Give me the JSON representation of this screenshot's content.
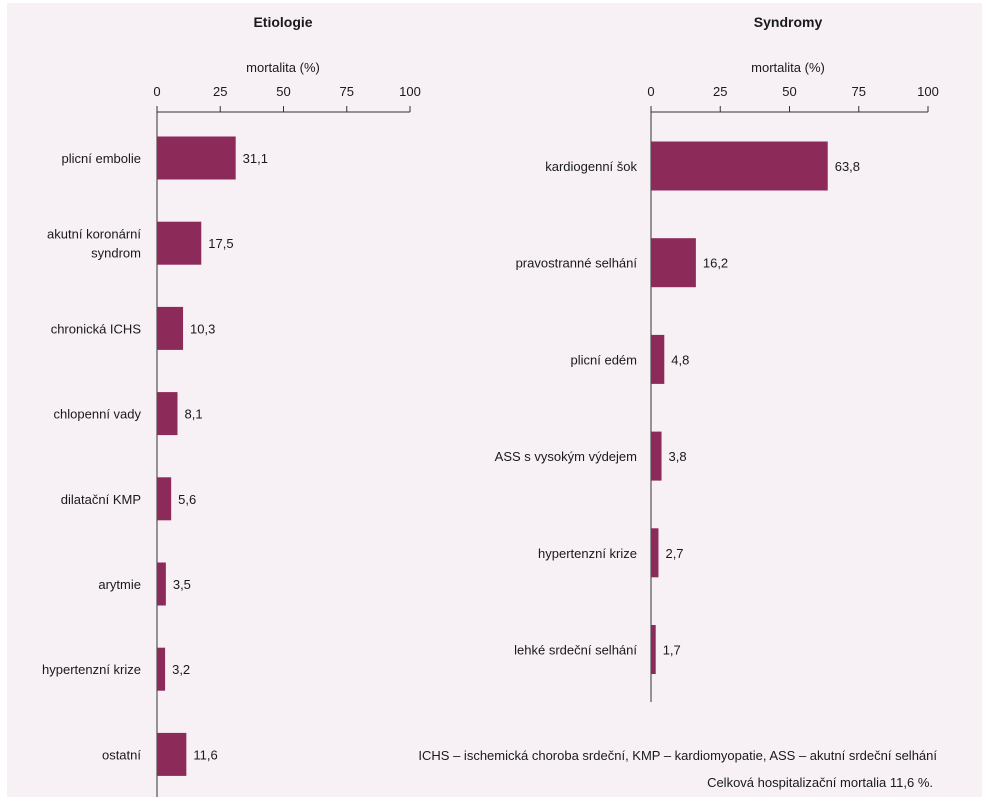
{
  "colors": {
    "bar": "#8c2a5a",
    "background": "#f7f0f5"
  },
  "chart_data": [
    {
      "type": "bar",
      "orientation": "horizontal",
      "title": "Etiologie",
      "xlabel": "mortalita (%)",
      "xlim": [
        0,
        100
      ],
      "xticks": [
        "0",
        "25",
        "50",
        "75",
        "100"
      ],
      "categories": [
        [
          "plicní embolie"
        ],
        [
          "akutní koronární",
          "syndrom"
        ],
        [
          "chronická ICHS"
        ],
        [
          "chlopenní vady"
        ],
        [
          "dilatační KMP"
        ],
        [
          "arytmie"
        ],
        [
          "hypertenzní krize"
        ],
        [
          "ostatní"
        ]
      ],
      "values": [
        31.1,
        17.5,
        10.3,
        8.1,
        5.6,
        3.5,
        3.2,
        11.6
      ],
      "value_labels": [
        "31,1",
        "17,5",
        "10,3",
        "8,1",
        "5,6",
        "3,5",
        "3,2",
        "11,6"
      ]
    },
    {
      "type": "bar",
      "orientation": "horizontal",
      "title": "Syndromy",
      "xlabel": "mortalita (%)",
      "xlim": [
        0,
        100
      ],
      "xticks": [
        "0",
        "25",
        "50",
        "75",
        "100"
      ],
      "categories": [
        [
          "kardiogenní šok"
        ],
        [
          "pravostranné selhání"
        ],
        [
          "plicní edém"
        ],
        [
          "ASS s vysokým výdejem"
        ],
        [
          "hypertenzní krize"
        ],
        [
          "lehké srdeční selhání"
        ]
      ],
      "values": [
        63.8,
        16.2,
        4.8,
        3.8,
        2.7,
        1.7
      ],
      "value_labels": [
        "63,8",
        "16,2",
        "4,8",
        "3,8",
        "2,7",
        "1,7"
      ]
    }
  ],
  "footnote": {
    "abbreviations": "ICHS – ischemická choroba srdeční, KMP – kardiomyopatie, ASS – akutní srdeční selhání",
    "total": "Celková hospitalizační mortalia 11,6 %."
  }
}
